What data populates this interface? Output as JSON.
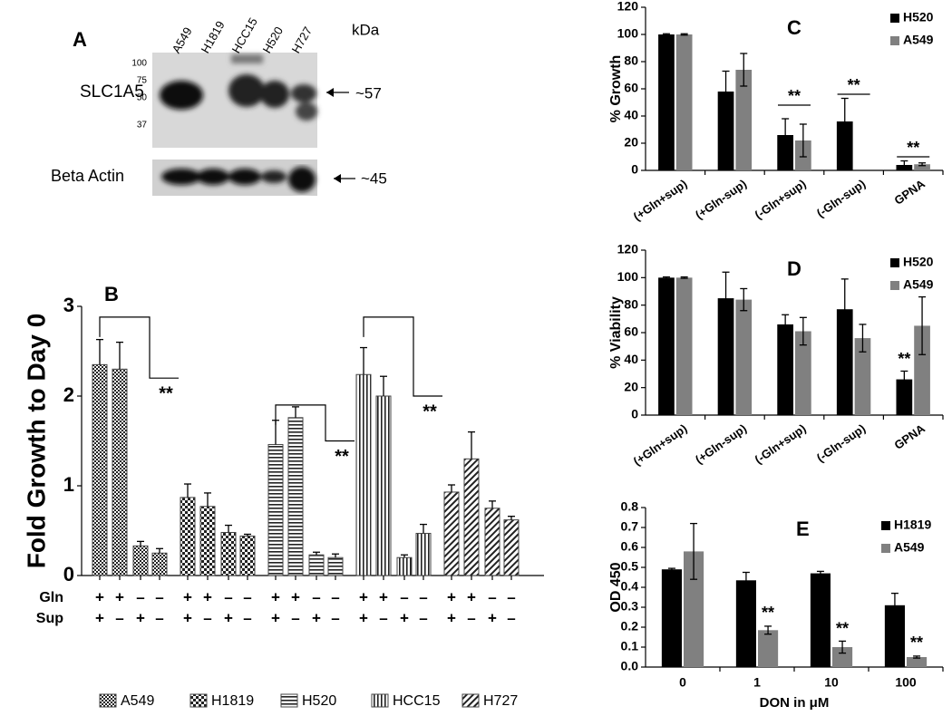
{
  "blot": {
    "panel_label": "A",
    "lanes": [
      "A549",
      "H1819",
      "HCC15",
      "H520",
      "H727"
    ],
    "unit": "kDa",
    "markers": [
      "100",
      "75",
      "50",
      "37"
    ],
    "protein": "SLC1A5",
    "protein_size": "~57",
    "control": "Beta Actin",
    "control_size": "~45"
  },
  "chart_data": [
    {
      "type": "bar",
      "panel_label": "B",
      "ylabel": "Fold Growth to  Day 0",
      "ylim": [
        0,
        3
      ],
      "yticks": [
        0,
        1,
        2,
        3
      ],
      "row_labels": [
        "Gln",
        "Sup"
      ],
      "rows": [
        [
          "+",
          "+",
          "–",
          "–"
        ],
        [
          "+",
          "–",
          "+",
          "–"
        ]
      ],
      "series": [
        {
          "name": "A549",
          "color": "#444444",
          "pattern": "checker",
          "values": [
            2.35,
            2.3,
            0.33,
            0.25
          ],
          "errors": [
            0.28,
            0.3,
            0.05,
            0.05
          ]
        },
        {
          "name": "H1819",
          "color": "#444444",
          "pattern": "dots",
          "values": [
            0.87,
            0.77,
            0.48,
            0.44
          ],
          "errors": [
            0.15,
            0.15,
            0.08,
            0.02
          ]
        },
        {
          "name": "H520",
          "color": "#444444",
          "pattern": "horizontal",
          "values": [
            1.46,
            1.76,
            0.23,
            0.2
          ],
          "errors": [
            0.27,
            0.12,
            0.03,
            0.04
          ]
        },
        {
          "name": "HCC15",
          "color": "#444444",
          "pattern": "vertical",
          "values": [
            2.24,
            2.0,
            0.2,
            0.47
          ],
          "errors": [
            0.3,
            0.22,
            0.03,
            0.1
          ]
        },
        {
          "name": "H727",
          "color": "#444444",
          "pattern": "diagonal",
          "values": [
            0.93,
            1.3,
            0.75,
            0.62
          ],
          "errors": [
            0.08,
            0.3,
            0.08,
            0.04
          ]
        }
      ],
      "annotations": [
        "**",
        "**",
        "**"
      ]
    },
    {
      "type": "bar",
      "panel_label": "C",
      "ylabel": "% Growth",
      "categories": [
        "(+Gln+sup)",
        "(+Gln-sup)",
        "(-Gln+sup)",
        "(-Gln-sup)",
        "GPNA"
      ],
      "ylim": [
        0,
        120
      ],
      "yticks": [
        0,
        20,
        40,
        60,
        80,
        100,
        120
      ],
      "series": [
        {
          "name": "H520",
          "color": "#000000",
          "values": [
            100,
            58,
            26,
            36,
            4
          ],
          "errors": [
            0.5,
            15,
            12,
            17,
            3
          ]
        },
        {
          "name": "A549",
          "color": "#808080",
          "values": [
            100,
            74,
            22,
            null,
            4.5
          ],
          "errors": [
            0.5,
            12,
            12,
            null,
            1
          ]
        }
      ],
      "annotations": [
        "**",
        "**",
        "**"
      ]
    },
    {
      "type": "bar",
      "panel_label": "D",
      "ylabel": "% Viability",
      "categories": [
        "(+Gln+sup)",
        "(+Gln-sup)",
        "(-Gln+sup)",
        "(-Gln-sup)",
        "GPNA"
      ],
      "ylim": [
        0,
        120
      ],
      "yticks": [
        0,
        20,
        40,
        60,
        80,
        100,
        120
      ],
      "series": [
        {
          "name": "H520",
          "color": "#000000",
          "values": [
            100,
            85,
            66,
            77,
            26
          ],
          "errors": [
            0.5,
            19,
            7,
            22,
            6
          ]
        },
        {
          "name": "A549",
          "color": "#808080",
          "values": [
            100,
            84,
            61,
            56,
            65
          ],
          "errors": [
            0.5,
            8,
            10,
            10,
            21
          ]
        }
      ],
      "annotations": [
        "**"
      ]
    },
    {
      "type": "bar",
      "panel_label": "E",
      "ylabel": "OD 450",
      "xlabel": "DON in μM",
      "categories": [
        "0",
        "1",
        "10",
        "100"
      ],
      "ylim": [
        0,
        0.8
      ],
      "yticks": [
        {
          "value": 0,
          "label": "0.0"
        },
        0.1,
        0.2,
        0.3,
        0.4,
        0.5,
        0.6,
        0.7,
        0.8
      ],
      "series": [
        {
          "name": "H1819",
          "color": "#000000",
          "values": [
            0.49,
            0.435,
            0.47,
            0.31
          ],
          "errors": [
            0.005,
            0.04,
            0.01,
            0.06
          ]
        },
        {
          "name": "A549",
          "color": "#808080",
          "values": [
            0.58,
            0.185,
            0.1,
            0.05
          ],
          "errors": [
            0.14,
            0.02,
            0.03,
            0.005
          ]
        }
      ],
      "annotations": [
        "**",
        "**",
        "**"
      ]
    }
  ]
}
